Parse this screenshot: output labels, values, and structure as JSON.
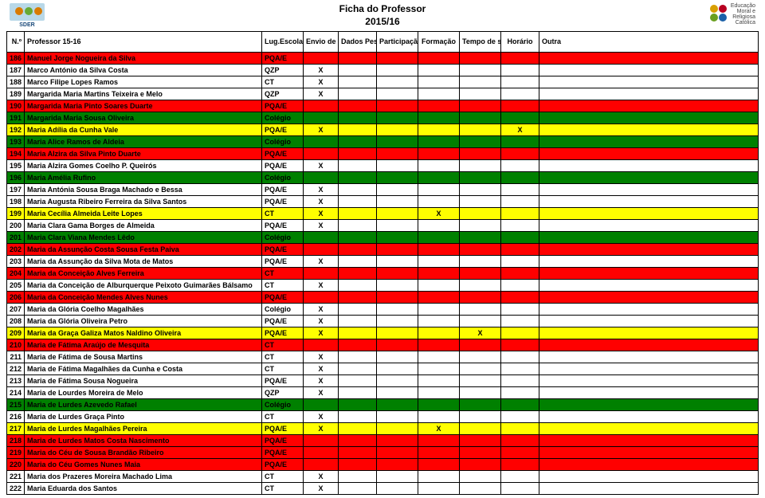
{
  "title_line1": "Ficha do Professor",
  "title_line2": "2015/16",
  "logo_left_text": "SDER",
  "logo_right_line1": "Educação",
  "logo_right_line2": "Moral e",
  "logo_right_line3": "Religiosa",
  "logo_right_line4": "Católica",
  "colors": {
    "red": "#ff0000",
    "green": "#008000",
    "yellow": "#ffff00",
    "white": "#ffffff",
    "header": "#ffffff"
  },
  "headers": {
    "num": "N.º",
    "name": "Professor 15-16",
    "lug": "Lug.Escola",
    "envio": "Envio de dados",
    "dados": "Dados Pessoais",
    "part": "Participação Eclesial",
    "form": "Formação",
    "tempo": "Tempo de serviço",
    "hor": "Horário",
    "outra": "Outra"
  },
  "rows": [
    {
      "n": 186,
      "name": "Manuel Jorge Nogueira da Silva",
      "lug": "PQA/E",
      "c": "red"
    },
    {
      "n": 187,
      "name": "Marco António da Silva Costa",
      "lug": "QZP",
      "c": "white",
      "env": "X"
    },
    {
      "n": 188,
      "name": "Marco Filipe Lopes Ramos",
      "lug": "CT",
      "c": "white",
      "env": "X"
    },
    {
      "n": 189,
      "name": "Margarida Maria Martins Teixeira e Melo",
      "lug": "QZP",
      "c": "white",
      "env": "X"
    },
    {
      "n": 190,
      "name": "Margarida Maria Pinto Soares Duarte",
      "lug": "PQA/E",
      "c": "red"
    },
    {
      "n": 191,
      "name": "Margarida Maria Sousa Oliveira",
      "lug": "Colégio",
      "c": "green"
    },
    {
      "n": 192,
      "name": "Maria Adília da Cunha Vale",
      "lug": "PQA/E",
      "c": "yellow",
      "env": "X",
      "hor": "X"
    },
    {
      "n": 193,
      "name": "Maria Alice Ramos de Aldeia",
      "lug": "Colégio",
      "c": "green"
    },
    {
      "n": 194,
      "name": "Maria Alzira da Silva Pinto Duarte",
      "lug": "PQA/E",
      "c": "red"
    },
    {
      "n": 195,
      "name": "Maria Alzira Gomes Coelho P. Queirós",
      "lug": "PQA/E",
      "c": "white",
      "env": "X"
    },
    {
      "n": 196,
      "name": "Maria Amélia Rufino",
      "lug": "Colégio",
      "c": "green"
    },
    {
      "n": 197,
      "name": "Maria Antónia Sousa Braga Machado e Bessa",
      "lug": "PQA/E",
      "c": "white",
      "env": "X"
    },
    {
      "n": 198,
      "name": "Maria Augusta Ribeiro Ferreira da Silva Santos",
      "lug": "PQA/E",
      "c": "white",
      "env": "X"
    },
    {
      "n": 199,
      "name": "Maria Cecília Almeida Leite Lopes",
      "lug": "CT",
      "c": "yellow",
      "env": "X",
      "form": "X"
    },
    {
      "n": 200,
      "name": "Maria Clara Gama Borges de Almeida",
      "lug": "PQA/E",
      "c": "white",
      "env": "X"
    },
    {
      "n": 201,
      "name": "Maria Clara Viana Mendes Lêdo",
      "lug": "Colégio",
      "c": "green"
    },
    {
      "n": 202,
      "name": "Maria da Assunção Costa Sousa Festa Paiva",
      "lug": "PQA/E",
      "c": "red"
    },
    {
      "n": 203,
      "name": "Maria da Assunção da Silva Mota de Matos",
      "lug": "PQA/E",
      "c": "white",
      "env": "X"
    },
    {
      "n": 204,
      "name": "Maria da Conceição Alves Ferreira",
      "lug": "CT",
      "c": "red"
    },
    {
      "n": 205,
      "name": "Maria da Conceição de Alburquerque Peixoto Guimarães Bálsamo",
      "lug": "CT",
      "c": "white",
      "env": "X"
    },
    {
      "n": 206,
      "name": "Maria da Conceição Mendes Alves Nunes",
      "lug": "PQA/E",
      "c": "red"
    },
    {
      "n": 207,
      "name": "Maria da Glória Coelho Magalhães",
      "lug": "Colégio",
      "c": "white",
      "env": "X"
    },
    {
      "n": 208,
      "name": "Maria da Glória Oliveira Petro",
      "lug": "PQA/E",
      "c": "white",
      "env": "X"
    },
    {
      "n": 209,
      "name": "Maria da Graça Galiza Matos Naldino Oliveira",
      "lug": "PQA/E",
      "c": "yellow",
      "env": "X",
      "tempo": "X"
    },
    {
      "n": 210,
      "name": "Maria de Fátima Araújo de Mesquita",
      "lug": "CT",
      "c": "red"
    },
    {
      "n": 211,
      "name": "Maria de Fátima de Sousa Martins",
      "lug": "CT",
      "c": "white",
      "env": "X"
    },
    {
      "n": 212,
      "name": "Maria de Fátima Magalhães da Cunha e Costa",
      "lug": "CT",
      "c": "white",
      "env": "X"
    },
    {
      "n": 213,
      "name": "Maria de Fátima Sousa Nogueira",
      "lug": "PQA/E",
      "c": "white",
      "env": "X"
    },
    {
      "n": 214,
      "name": "Maria de Lourdes Moreira de Melo",
      "lug": "QZP",
      "c": "white",
      "env": "X"
    },
    {
      "n": 215,
      "name": "Maria de Lurdes Azevedo Rafael",
      "lug": "Colégio",
      "c": "green"
    },
    {
      "n": 216,
      "name": "Maria de Lurdes Graça Pinto",
      "lug": "CT",
      "c": "white",
      "env": "X"
    },
    {
      "n": 217,
      "name": "Maria de Lurdes Magalhães Pereira",
      "lug": "PQA/E",
      "c": "yellow",
      "env": "X",
      "form": "X"
    },
    {
      "n": 218,
      "name": "Maria de Lurdes Matos Costa Nascimento",
      "lug": "PQA/E",
      "c": "red"
    },
    {
      "n": 219,
      "name": "Maria do Céu de Sousa Brandão Ribeiro",
      "lug": "PQA/E",
      "c": "red"
    },
    {
      "n": 220,
      "name": "Maria do Céu Gomes Nunes Maia",
      "lug": "PQA/E",
      "c": "red"
    },
    {
      "n": 221,
      "name": "Maria dos Prazeres Moreira Machado Lima",
      "lug": "CT",
      "c": "white",
      "env": "X"
    },
    {
      "n": 222,
      "name": "Maria Eduarda dos Santos",
      "lug": "CT",
      "c": "white",
      "env": "X"
    }
  ]
}
